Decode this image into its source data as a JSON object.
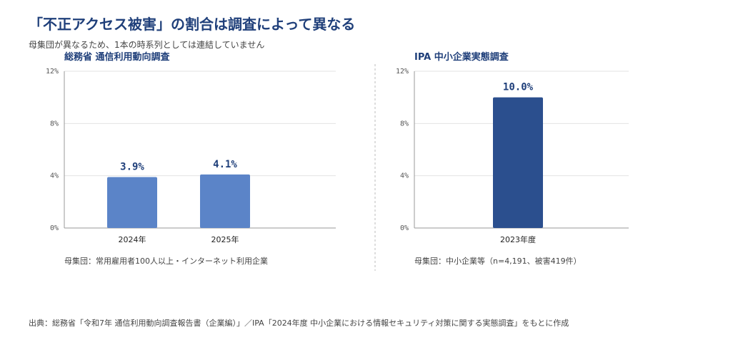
{
  "header": {
    "title": "「不正アクセス被害」の割合は調査によって異なる",
    "subtitle": "母集団が異なるため、1本の時系列としては連結していません"
  },
  "footer": {
    "source": "出典：総務省「令和7年 通信利用動向調査報告書（企業編）」／IPA「2024年度 中小企業における情報セキュリティ対策に関する実態調査」をもとに作成"
  },
  "colors": {
    "title": "#1f3f7a",
    "bar_left": "#5b84c8",
    "bar_right": "#2b4f8e",
    "grid": "#e3e3e3",
    "axis": "#999999",
    "divider": "#bbbbbb"
  },
  "chart_data": [
    {
      "type": "bar",
      "title": "総務省 通信利用動向調査",
      "categories": [
        "2024年",
        "2025年"
      ],
      "values": [
        3.9,
        4.1
      ],
      "data_labels": [
        "3.9%",
        "4.1%"
      ],
      "yticks": [
        "0%",
        "4%",
        "8%",
        "12%"
      ],
      "ylim": [
        0,
        12
      ],
      "grid": true,
      "note": "母集団：常用雇用者100人以上・インターネット利用企業"
    },
    {
      "type": "bar",
      "title": "IPA 中小企業実態調査",
      "categories": [
        "2023年度"
      ],
      "values": [
        10.0
      ],
      "data_labels": [
        "10.0%"
      ],
      "yticks": [
        "0%",
        "4%",
        "8%",
        "12%"
      ],
      "ylim": [
        0,
        12
      ],
      "grid": true,
      "note": "母集団：中小企業等（n=4,191、被害419件）"
    }
  ]
}
